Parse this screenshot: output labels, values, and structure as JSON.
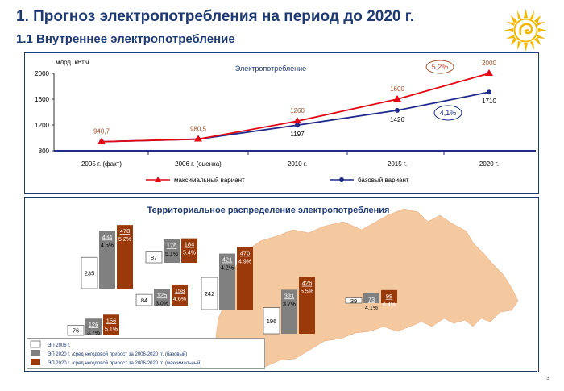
{
  "header": {
    "title": "1. Прогноз электропотребления на период до 2020 г.",
    "subtitle": "1.1 Внутреннее электропотребление",
    "page_number": "3"
  },
  "colors": {
    "title": "#1f3a73",
    "max_series": "#e30613",
    "base_series": "#1f2a8a",
    "bar_2006": "#ffffff",
    "bar_base": "#808080",
    "bar_max": "#9a3a0a",
    "map": "#f5c9a0",
    "growth_max_circle": "#a0522d",
    "growth_base_circle": "#1f2a8a"
  },
  "chart_data": [
    {
      "type": "line",
      "title": "Электропотребление",
      "ylabel": "млрд. кВт.ч.",
      "xlabel": "",
      "categories": [
        "2005 г. (факт)",
        "2006 г. (оценка)",
        "2010 г.",
        "2015 г.",
        "2020 г."
      ],
      "ylim": [
        800,
        2000
      ],
      "yticks": [
        800,
        1200,
        1600,
        2000
      ],
      "grid": false,
      "legend": "bottom",
      "series": [
        {
          "name": "максимальный вариант",
          "values": [
            940.7,
            980.5,
            1260,
            1600,
            2000
          ],
          "labels": [
            "940,7",
            "980,5",
            "1260",
            "1600",
            "2000"
          ],
          "marker": "triangle"
        },
        {
          "name": "базовый вариант",
          "values": [
            940.7,
            980.5,
            1197,
            1426,
            1710
          ],
          "labels": [
            "",
            "",
            "1197",
            "1426",
            "1710"
          ],
          "marker": "circle"
        }
      ],
      "annotations": [
        {
          "text": "5,2%",
          "series": "максимальный вариант"
        },
        {
          "text": "4,1%",
          "series": "базовый вариант"
        }
      ]
    },
    {
      "type": "bar",
      "title": "Территориальное распределение электропотребления",
      "series": [
        {
          "name": "ЭП 2006 г."
        },
        {
          "name": "ЭП 2020 г. /сред негодовой прирост за 2006-2020 гг. (базовый)"
        },
        {
          "name": "ЭП 2020 г. /сред негодовой прирост за 2006-2020 гг. (максимальный)"
        }
      ],
      "regions": [
        {
          "values": [
            235,
            434,
            478
          ],
          "growth": [
            "4.5%",
            "5.2%"
          ]
        },
        {
          "values": [
            87,
            176,
            184
          ],
          "growth": [
            "5.1%",
            "5.4%"
          ]
        },
        {
          "values": [
            84,
            125,
            158
          ],
          "growth": [
            "3.0%",
            "4.6%"
          ]
        },
        {
          "values": [
            242,
            421,
            470
          ],
          "growth": [
            "4.2%",
            "4.9%"
          ]
        },
        {
          "values": [
            76,
            126,
            156
          ],
          "growth": [
            "3.7%",
            "5.1%"
          ]
        },
        {
          "values": [
            196,
            331,
            426
          ],
          "growth": [
            "3.7%",
            "5.5%"
          ]
        },
        {
          "values": [
            39,
            73,
            98
          ],
          "growth": [
            "4.1%",
            "6.4%"
          ]
        }
      ]
    }
  ]
}
